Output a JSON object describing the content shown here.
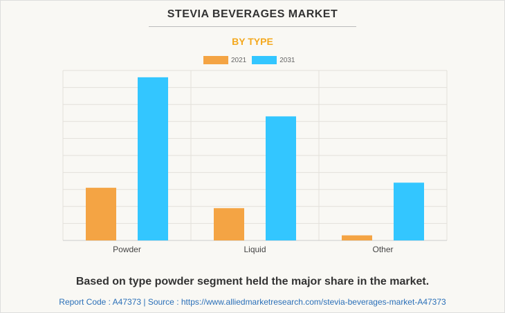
{
  "chart_data": {
    "type": "bar",
    "title": "STEVIA BEVERAGES MARKET",
    "subtitle": "BY TYPE",
    "categories": [
      "Powder",
      "Liquid",
      "Other"
    ],
    "series": [
      {
        "name": "2021",
        "color": "#f4a444",
        "values": [
          3.1,
          1.9,
          0.3
        ]
      },
      {
        "name": "2031",
        "color": "#33c6ff",
        "values": [
          9.6,
          7.3,
          3.4
        ]
      }
    ],
    "ylim": [
      0,
      10
    ],
    "grid": true,
    "legend": "top-center",
    "xlabel": "",
    "ylabel": ""
  },
  "caption": "Based on type powder segment held the major share in the market.",
  "footer": "Report Code : A47373  |  Source : https://www.alliedmarketresearch.com/stevia-beverages-market-A47373"
}
